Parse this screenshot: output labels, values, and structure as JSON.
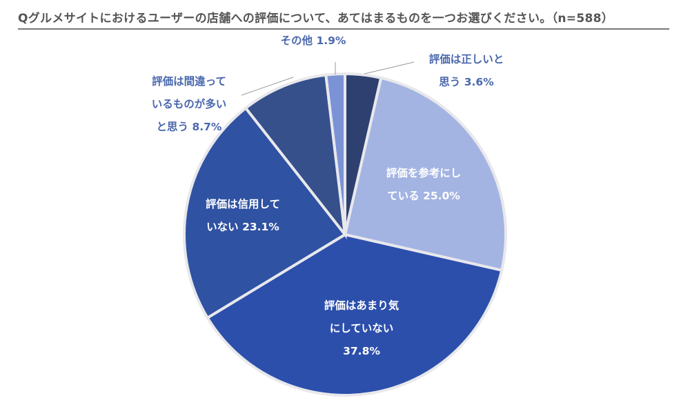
{
  "title": "Qグルメサイトにおけるユーザーの店舗への評価について、あてはまるものを一つお選びください。（n=588）",
  "chart_data": {
    "type": "pie",
    "title": "Qグルメサイトにおけるユーザーの店舗への評価について、あてはまるものを一つお選びください。（n=588）",
    "unit": "%",
    "slices": [
      {
        "label": "評価は正しいと\n思う",
        "value": 3.6,
        "value_label": "3.6%",
        "color": "#2e4070",
        "label_position": "outside"
      },
      {
        "label": "評価を参考にし\nている",
        "value": 25.0,
        "value_label": "25.0%",
        "color": "#a3b4e3",
        "label_position": "inside"
      },
      {
        "label": "評価はあまり気\nにしていない\n",
        "value": 37.8,
        "value_label": "37.8%",
        "color": "#2c4fac",
        "label_position": "inside"
      },
      {
        "label": "評価は信用して\nいない",
        "value": 23.1,
        "value_label": "23.1%",
        "color": "#2f52a2",
        "label_position": "inside"
      },
      {
        "label": "評価は間違って\nいるものが多い\nと思う",
        "value": 8.7,
        "value_label": "8.7%",
        "color": "#36508c",
        "label_position": "outside"
      },
      {
        "label": "その他",
        "value": 1.9,
        "value_label": "1.9%",
        "color": "#7b93d6",
        "label_position": "outside"
      }
    ]
  }
}
